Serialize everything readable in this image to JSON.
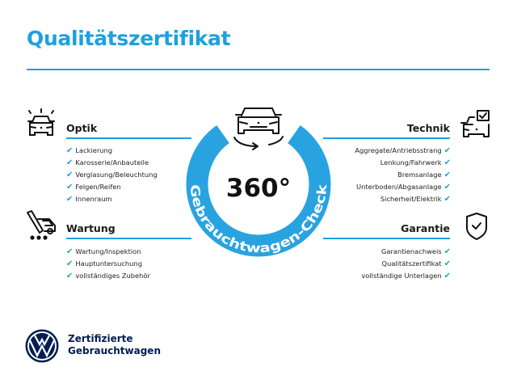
{
  "title": "Qualitätszertifikat",
  "colors": {
    "accent": "#1ea0df",
    "brand_navy": "#001e50"
  },
  "badge": {
    "value": "360°",
    "ring_text": "Gebrauchtwagen-Check",
    "icon": "car-rotate-icon"
  },
  "sections": {
    "optik": {
      "heading": "Optik",
      "icon": "car-lights-icon",
      "items": [
        "Lackierung",
        "Karosserie/Anbauteile",
        "Verglasung/Beleuchtung",
        "Felgen/Reifen",
        "Innenraum"
      ]
    },
    "wartung": {
      "heading": "Wartung",
      "icon": "van-wrench-icon",
      "items": [
        "Wartung/Inspektion",
        "Hauptuntersuchung",
        "vollständiges Zubehör"
      ]
    },
    "technik": {
      "heading": "Technik",
      "icon": "car-checkbox-icon",
      "items": [
        "Aggregate/Antriebsstrang",
        "Lenkung/Fahrwerk",
        "Bremsanlage",
        "Unterboden/Abgasanlage",
        "Sicherheit/Elektrik"
      ]
    },
    "garantie": {
      "heading": "Garantie",
      "icon": "shield-check-icon",
      "items": [
        "Garantienachweis",
        "Qualitätszertifikat",
        "vollständige Unterlagen"
      ]
    }
  },
  "check_glyph": "✔",
  "logo": {
    "brand": "VW",
    "line1": "Zertifizierte",
    "line2": "Gebrauchtwagen"
  }
}
